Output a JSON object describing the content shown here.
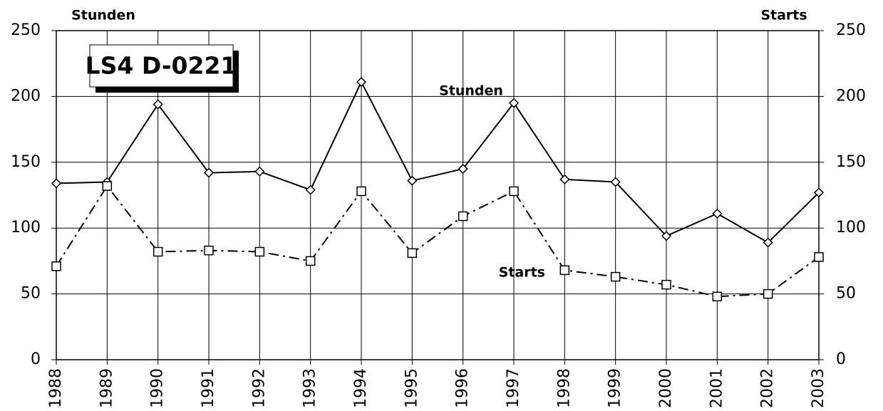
{
  "chart_data": {
    "type": "line",
    "title": "LS4 D-0221",
    "y_label": "Stunden",
    "y2_label": "Starts",
    "annotations": [
      {
        "text": "Stunden",
        "x": "1997",
        "y": 204
      },
      {
        "text": "Starts",
        "x": "1998",
        "y": 66
      }
    ],
    "categories": [
      "1988",
      "1989",
      "1990",
      "1991",
      "1992",
      "1993",
      "1994",
      "1995",
      "1996",
      "1997",
      "1998",
      "1999",
      "2000",
      "2001",
      "2002",
      "2003"
    ],
    "series": [
      {
        "name": "Stunden",
        "color": "#000000",
        "marker": "diamond",
        "line_style": "solid",
        "axis": "y",
        "values": [
          134,
          135,
          194,
          142,
          143,
          129,
          211,
          136,
          145,
          195,
          137,
          135,
          94,
          111,
          89,
          127
        ]
      },
      {
        "name": "Starts",
        "color": "#000000",
        "marker": "square",
        "line_style": "dashdot",
        "axis": "y2",
        "values": [
          71,
          132,
          82,
          83,
          82,
          75,
          128,
          81,
          109,
          128,
          68,
          63,
          57,
          48,
          50,
          78
        ]
      }
    ],
    "ylim": [
      0,
      250
    ],
    "yticks": [
      0,
      50,
      100,
      150,
      200,
      250
    ],
    "y2lim": [
      0,
      250
    ],
    "y2ticks": [
      0,
      50,
      100,
      150,
      200,
      250
    ],
    "grid": true
  }
}
